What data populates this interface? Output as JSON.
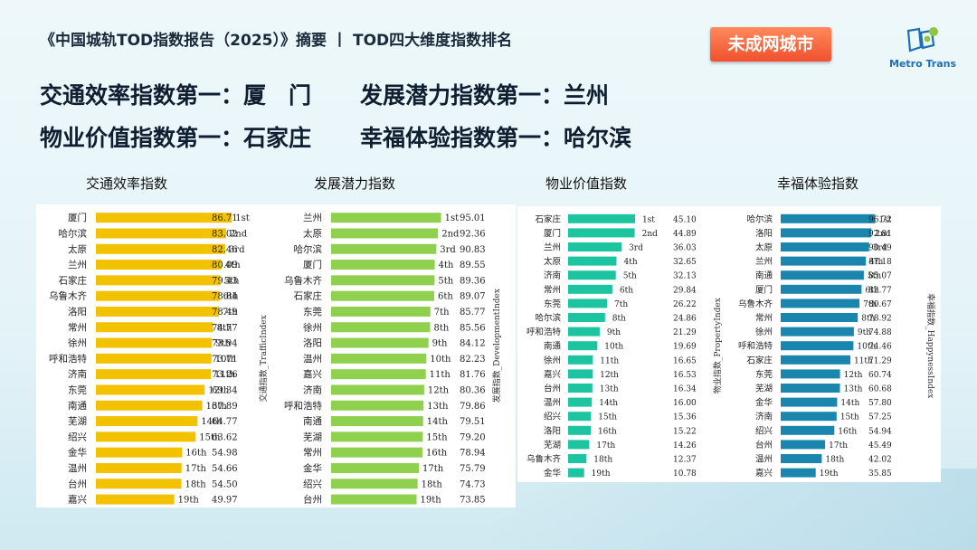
{
  "header": {
    "report": "《中国城轨TOD指数报告（2025）》摘要",
    "separator": "丨",
    "section": "TOD四大维度指数排名"
  },
  "badge": "未成网城市",
  "logo": {
    "text": "Metro Trans",
    "icon": "metro-trans-logo-icon"
  },
  "headlines": {
    "line1_left": "交通效率指数第一：厦　门",
    "line1_right": "发展潜力指数第一：兰州",
    "line2_left": "物业价值指数第一：石家庄",
    "line2_right": "幸福体验指数第一：哈尔滨"
  },
  "colors": {
    "traffic": "#f2c200",
    "development": "#8fd14f",
    "property": "#1cc4a0",
    "happiness": "#1a86ad"
  },
  "chart_data": [
    {
      "type": "bar",
      "orientation": "horizontal",
      "title": "交通效率指数",
      "ylabel": "",
      "categories": [
        "厦门",
        "哈尔滨",
        "太原",
        "兰州",
        "石家庄",
        "乌鲁木齐",
        "洛阳",
        "常州",
        "徐州",
        "呼和浩特",
        "济南",
        "东莞",
        "南通",
        "芜湖",
        "绍兴",
        "金华",
        "温州",
        "台州",
        "嘉兴"
      ],
      "ranks": [
        "1st",
        "2nd",
        "3rd",
        "4th",
        "5th",
        "6th",
        "7th",
        "8th",
        "9th",
        "10th",
        "11th",
        "12th",
        "13th",
        "14th",
        "15th",
        "16th",
        "17th",
        "18th",
        "19th"
      ],
      "values": [
        86.71,
        83.02,
        82.46,
        80.09,
        79.43,
        78.84,
        78.49,
        74.77,
        73.94,
        73.71,
        73.26,
        69.34,
        67.89,
        64.77,
        63.62,
        54.98,
        54.66,
        54.5,
        49.97
      ]
    },
    {
      "type": "bar",
      "orientation": "horizontal",
      "title": "发展潜力指数",
      "ylabel": "交通指数_TrafficIndex",
      "categories": [
        "兰州",
        "太原",
        "哈尔滨",
        "厦门",
        "乌鲁木齐",
        "石家庄",
        "东莞",
        "徐州",
        "洛阳",
        "温州",
        "嘉兴",
        "济南",
        "呼和浩特",
        "南通",
        "芜湖",
        "常州",
        "金华",
        "绍兴",
        "台州"
      ],
      "ranks": [
        "1st",
        "2nd",
        "3rd",
        "4th",
        "5th",
        "6th",
        "7th",
        "8th",
        "9th",
        "10th",
        "11th",
        "12th",
        "13th",
        "14th",
        "15th",
        "16th",
        "17th",
        "18th",
        "19th"
      ],
      "values": [
        95.01,
        92.36,
        90.83,
        89.55,
        89.36,
        89.07,
        85.77,
        85.56,
        84.12,
        82.23,
        81.76,
        80.36,
        79.86,
        79.51,
        79.2,
        78.94,
        75.79,
        74.73,
        73.85
      ]
    },
    {
      "type": "bar",
      "orientation": "horizontal",
      "title": "物业价值指数",
      "ylabel": "发展指数_DevelopmentIndex",
      "categories": [
        "石家庄",
        "厦门",
        "兰州",
        "太原",
        "济南",
        "常州",
        "东莞",
        "哈尔滨",
        "呼和浩特",
        "南通",
        "徐州",
        "嘉兴",
        "台州",
        "温州",
        "绍兴",
        "洛阳",
        "芜湖",
        "乌鲁木齐",
        "金华"
      ],
      "ranks": [
        "1st",
        "2nd",
        "3rd",
        "4th",
        "5th",
        "6th",
        "7th",
        "8th",
        "9th",
        "10th",
        "11th",
        "12th",
        "13th",
        "14th",
        "15th",
        "16th",
        "17th",
        "18th",
        "19th"
      ],
      "values": [
        45.1,
        44.89,
        36.03,
        32.65,
        32.13,
        29.84,
        26.22,
        24.86,
        21.29,
        19.69,
        16.65,
        16.53,
        16.34,
        16.0,
        15.36,
        15.22,
        14.26,
        12.37,
        10.78
      ]
    },
    {
      "type": "bar",
      "orientation": "horizontal",
      "title": "幸福体验指数",
      "ylabel": "物业指数_PropertyIndex",
      "ylabel_right": "幸福指数_HappynessIndex",
      "categories": [
        "哈尔滨",
        "洛阳",
        "太原",
        "兰州",
        "南通",
        "厦门",
        "乌鲁木齐",
        "常州",
        "徐州",
        "呼和浩特",
        "石家庄",
        "东莞",
        "芜湖",
        "金华",
        "济南",
        "绍兴",
        "台州",
        "温州",
        "嘉兴"
      ],
      "ranks": [
        "1st",
        "2nd",
        "3rd",
        "4th",
        "5th",
        "6th",
        "7th",
        "8th",
        "9th",
        "10th",
        "11th",
        "12th",
        "13th",
        "14th",
        "15th",
        "16th",
        "17th",
        "18th",
        "19th"
      ],
      "values": [
        96.72,
        92.81,
        90.49,
        87.18,
        85.07,
        82.77,
        80.67,
        78.92,
        74.88,
        74.46,
        71.29,
        60.74,
        60.68,
        57.8,
        57.25,
        54.94,
        45.49,
        42.02,
        35.85
      ]
    }
  ]
}
